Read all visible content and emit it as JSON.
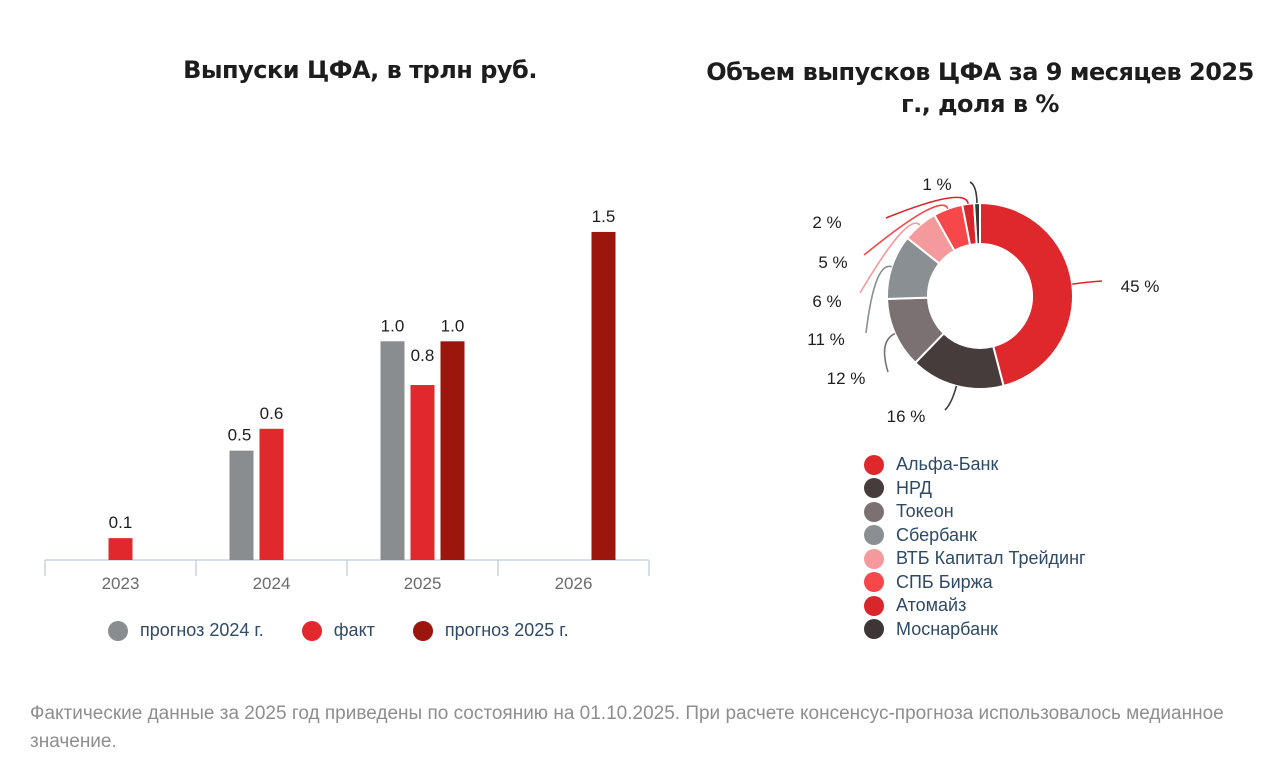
{
  "chart_data": [
    {
      "type": "bar",
      "title": "Выпуски ЦФА, в трлн руб.",
      "xlabel": "",
      "ylabel": "",
      "categories": [
        "2023",
        "2024",
        "2025",
        "2026"
      ],
      "series": [
        {
          "name": "прогноз 2024 г.",
          "color": "#8a8d90",
          "values": [
            null,
            0.5,
            1.0,
            null
          ],
          "labels": [
            null,
            "0.5",
            "1.0",
            null
          ]
        },
        {
          "name": "факт",
          "color": "#e0282d",
          "values": [
            0.1,
            0.6,
            0.8,
            null
          ],
          "labels": [
            "0.1",
            "0.6",
            "0.8",
            null
          ]
        },
        {
          "name": "прогноз 2025 г.",
          "color": "#9b160d",
          "values": [
            null,
            null,
            1.0,
            1.5
          ],
          "labels": [
            null,
            null,
            "1.0",
            "1.5"
          ]
        }
      ],
      "ylim": [
        0,
        1.5
      ],
      "grid": false,
      "legend_position": "bottom"
    },
    {
      "type": "pie",
      "title": "Объем выпусков ЦФА за 9 месяцев 2025 г., доля в %",
      "slices": [
        {
          "name": "Альфа-Банк",
          "value": 45,
          "label": "45 %",
          "color": "#de282c"
        },
        {
          "name": "НРД",
          "value": 16,
          "label": "16 %",
          "color": "#453c3b"
        },
        {
          "name": "Токеон",
          "value": 12,
          "label": "12 %",
          "color": "#7b7172"
        },
        {
          "name": "Сбербанк",
          "value": 11,
          "label": "11 %",
          "color": "#8a8f94"
        },
        {
          "name": "ВТБ Капитал Трейдинг",
          "value": 6,
          "label": "6 %",
          "color": "#f59a9c"
        },
        {
          "name": "СПБ Биржа",
          "value": 5,
          "label": "5 %",
          "color": "#f6474b"
        },
        {
          "name": "Атомайз",
          "value": 2,
          "label": "2 %",
          "color": "#d9262b"
        },
        {
          "name": "Моснарбанк",
          "value": 1,
          "label": "1 %",
          "color": "#3e3636"
        }
      ],
      "donut": true,
      "legend_position": "bottom"
    }
  ],
  "footnote": "Фактические данные за 2025 год приведены по состоянию на 01.10.2025. При расчете консенсус-прогноза использовалось медианное значение."
}
